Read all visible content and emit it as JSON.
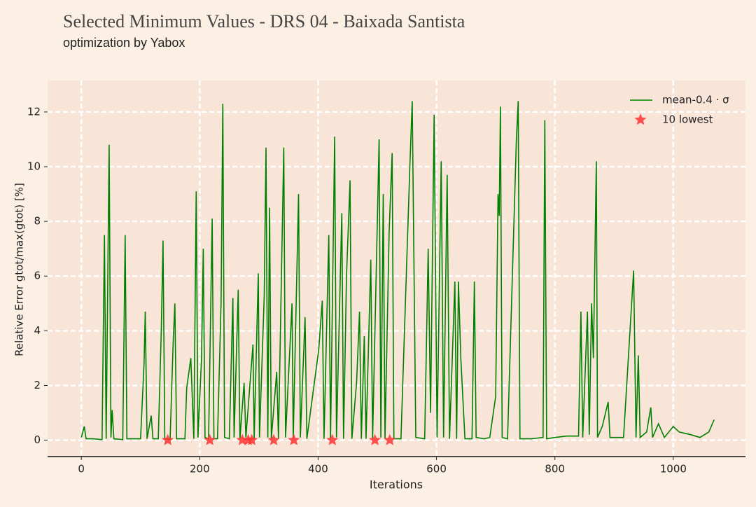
{
  "chart_data": {
    "type": "line",
    "title": "Selected Minimum Values - DRS 04 - Baixada Santista",
    "subtitle": "optimization by Yabox",
    "xlabel": "Iterations",
    "ylabel": "Relative Error gtot/max(gtot) [%]",
    "xlim": [
      -57,
      1122
    ],
    "ylim": [
      -0.6,
      13.15
    ],
    "xticks": [
      0,
      200,
      400,
      600,
      800,
      1000
    ],
    "yticks": [
      0,
      2,
      4,
      6,
      8,
      10,
      12
    ],
    "grid": true,
    "legend": "upper right",
    "series": [
      {
        "name": "mean-0.4 · σ",
        "color": "#008000",
        "marker": "none",
        "x": [
          0,
          5,
          8,
          20,
          35,
          39,
          42,
          47,
          50,
          52,
          55,
          70,
          74,
          77,
          100,
          106,
          108,
          111,
          118,
          121,
          130,
          135,
          138,
          141,
          150,
          155,
          158,
          161,
          175,
          178,
          185,
          190,
          194,
          197,
          203,
          206,
          209,
          215,
          221,
          224,
          230,
          236,
          239,
          242,
          250,
          256,
          258,
          265,
          268,
          275,
          278,
          290,
          292,
          299,
          301,
          309,
          312,
          315,
          318,
          321,
          330,
          333,
          342,
          345,
          356,
          358,
          367,
          370,
          378,
          381,
          401,
          407,
          410,
          418,
          421,
          428,
          431,
          440,
          443,
          448,
          454,
          457,
          465,
          470,
          473,
          478,
          481,
          489,
          492,
          503,
          506,
          510,
          513,
          520,
          525,
          528,
          540,
          555,
          559,
          565,
          580,
          586,
          590,
          596,
          601,
          608,
          612,
          618,
          622,
          631,
          634,
          637,
          641,
          648,
          660,
          664,
          667,
          680,
          690,
          700,
          704,
          706,
          708,
          711,
          720,
          735,
          738,
          741,
          760,
          780,
          783,
          786,
          800,
          820,
          840,
          844,
          847,
          855,
          858,
          862,
          865,
          870,
          872,
          880,
          890,
          893,
          916,
          933,
          937,
          941,
          944,
          955,
          962,
          965,
          975,
          985,
          1000,
          1010,
          1030,
          1045,
          1060,
          1069
        ],
        "values": [
          0.1,
          0.5,
          0.05,
          0.05,
          0.02,
          7.5,
          0.05,
          10.8,
          0.1,
          1.1,
          0.05,
          0.02,
          7.5,
          0.05,
          0.05,
          2.8,
          4.7,
          0.05,
          0.9,
          0.05,
          0.05,
          4,
          7.3,
          0.05,
          0.03,
          3.5,
          5,
          0.05,
          0.05,
          1.9,
          3,
          0.05,
          9.1,
          0.1,
          3,
          7,
          0.1,
          0.05,
          8.1,
          0.05,
          0.05,
          5,
          12.3,
          0.1,
          0.05,
          5.2,
          0.1,
          5.5,
          0.05,
          2.1,
          0.1,
          3.5,
          0.05,
          6.1,
          0.1,
          5.3,
          10.7,
          0.1,
          8.5,
          0.05,
          2.5,
          0.05,
          10.7,
          0.1,
          5,
          0.05,
          9,
          0.1,
          4.5,
          0.05,
          3.3,
          5.1,
          0.05,
          7.5,
          0.05,
          11.1,
          0.1,
          8.3,
          0.05,
          6,
          9.5,
          0.05,
          2.1,
          4.7,
          0.05,
          3.8,
          0.05,
          6.6,
          0.05,
          11,
          0.1,
          9,
          0.05,
          7.6,
          10.5,
          0.05,
          0.05,
          10,
          12.4,
          0.1,
          0.05,
          7,
          1,
          11.9,
          0.1,
          10.2,
          0.1,
          9.7,
          0.05,
          5.8,
          0.05,
          5.8,
          3,
          0.05,
          0.05,
          5.8,
          0.1,
          0.05,
          0.1,
          1.6,
          9,
          8.2,
          12.2,
          0.1,
          0.05,
          11,
          12.4,
          0.05,
          0.05,
          0.1,
          11.7,
          0.05,
          0.1,
          0.15,
          0.15,
          4.7,
          0.1,
          4.7,
          0.2,
          5,
          3,
          10.2,
          0.1,
          0.5,
          1.4,
          0.1,
          0.1,
          6.2,
          0.1,
          3.1,
          0.1,
          0.3,
          1.2,
          0.1,
          0.6,
          0.1,
          0.5,
          0.3,
          0.2,
          0.1,
          0.3,
          0.75
        ]
      },
      {
        "name": "10 lowest",
        "color": "#ff3333",
        "marker": "star",
        "x": [
          146,
          217,
          272,
          282,
          288,
          325,
          359,
          424,
          496,
          521
        ],
        "values": [
          0,
          0,
          0,
          0,
          0,
          0,
          0,
          0,
          0,
          0
        ]
      }
    ]
  }
}
